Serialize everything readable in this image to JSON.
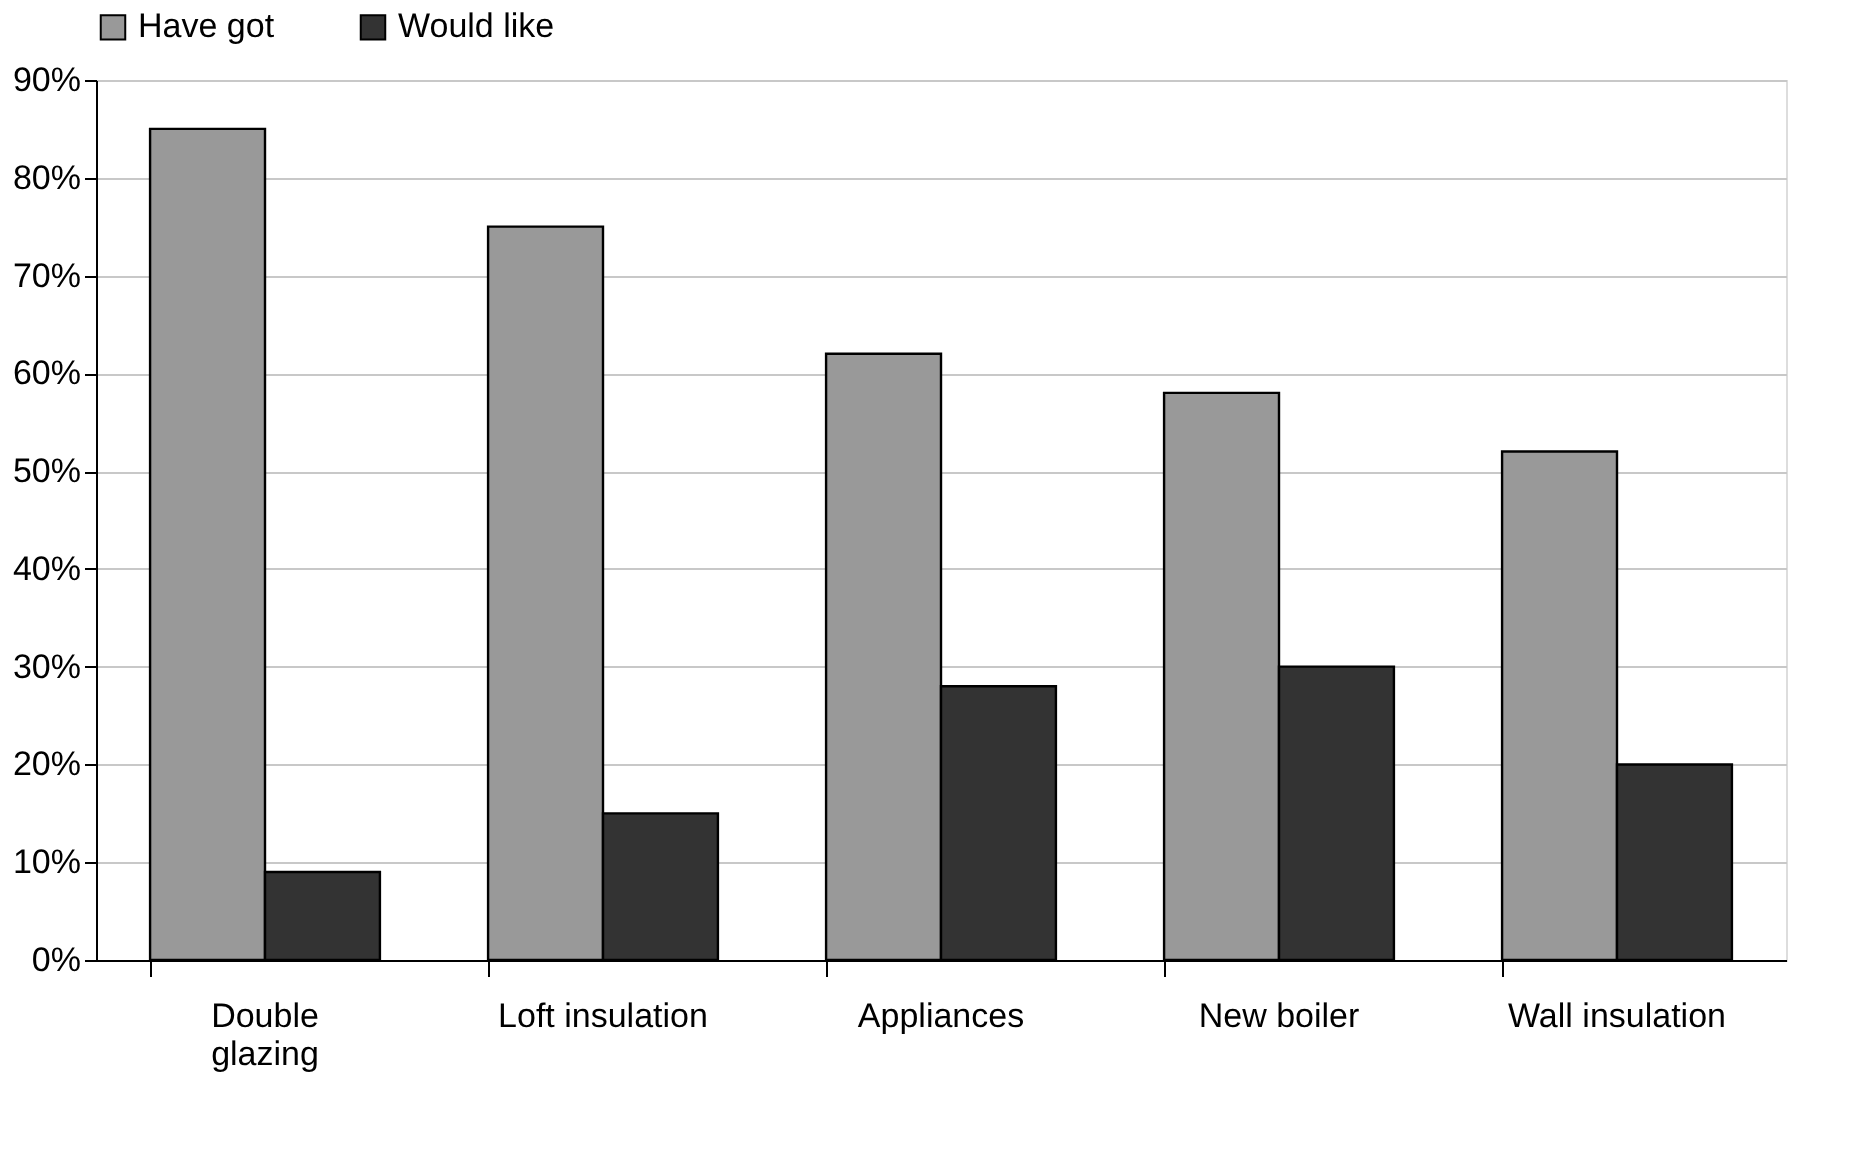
{
  "chart_data": {
    "type": "bar",
    "categories": [
      "Double\nglazing",
      "Loft insulation",
      "Appliances",
      "New boiler",
      "Wall insulation"
    ],
    "series": [
      {
        "name": "Have got",
        "color": "#999999",
        "values": [
          85,
          75,
          62,
          58,
          52
        ]
      },
      {
        "name": "Would like",
        "color": "#333333",
        "values": [
          9,
          15,
          28,
          30,
          20
        ]
      }
    ],
    "ylim": [
      0,
      90
    ],
    "yticks": [
      {
        "value": 0,
        "label": "0%"
      },
      {
        "value": 10,
        "label": "10%"
      },
      {
        "value": 20,
        "label": "20%"
      },
      {
        "value": 30,
        "label": "30%"
      },
      {
        "value": 40,
        "label": "40%"
      },
      {
        "value": 50,
        "label": "50%"
      },
      {
        "value": 60,
        "label": "60%"
      },
      {
        "value": 70,
        "label": "70%"
      },
      {
        "value": 80,
        "label": "80%"
      },
      {
        "value": 90,
        "label": "90%"
      }
    ],
    "grid": "y",
    "legend": "top"
  }
}
